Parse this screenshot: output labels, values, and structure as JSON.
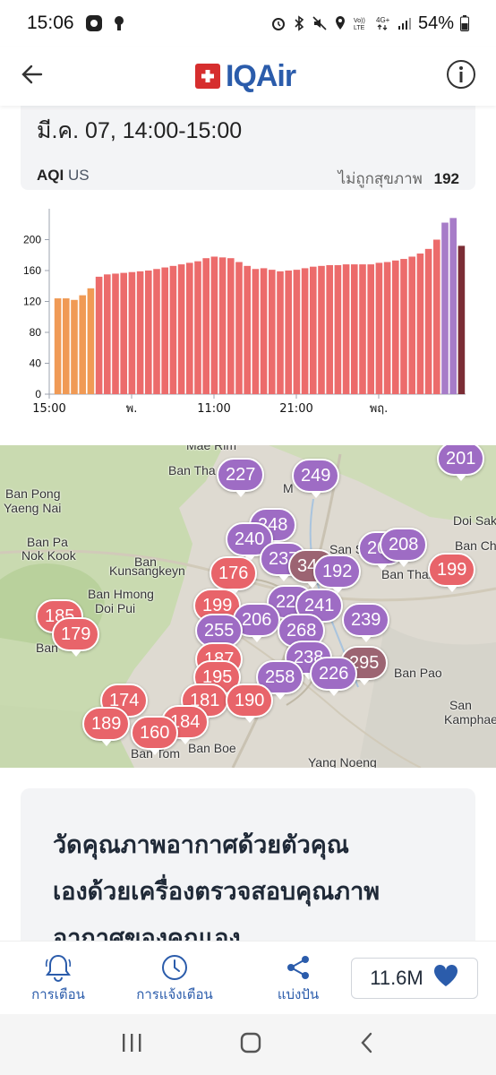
{
  "status_bar": {
    "time": "15:06",
    "battery": "54%",
    "icons": [
      "app-icon",
      "tree-icon",
      "alarm-icon",
      "bluetooth-icon",
      "mute-icon",
      "location-icon",
      "volte-icon",
      "4g-icon",
      "signal-icon",
      "battery-icon"
    ]
  },
  "header": {
    "back_icon": "arrow-left-icon",
    "logo_text": "IQAir",
    "info_icon": "info-icon"
  },
  "summary": {
    "datetime": "มี.ค. 07, 14:00-15:00",
    "aqi_label": "AQI",
    "aqi_unit": "US",
    "status": "ไม่ถูกสุขภาพ",
    "value": "192"
  },
  "chart_data": {
    "type": "bar",
    "ylim": [
      0,
      240
    ],
    "yticks": [
      0,
      40,
      80,
      120,
      160,
      200
    ],
    "xtick_labels": [
      "15:00",
      "พ.",
      "11:00",
      "21:00",
      "พฤ."
    ],
    "xtick_index": [
      0,
      10,
      20,
      30,
      40
    ],
    "values": [
      124,
      124,
      122,
      128,
      137,
      152,
      155,
      156,
      157,
      158,
      159,
      160,
      162,
      164,
      166,
      168,
      170,
      172,
      176,
      178,
      177,
      176,
      171,
      166,
      162,
      163,
      161,
      159,
      160,
      161,
      163,
      165,
      166,
      167,
      167,
      168,
      168,
      168,
      168,
      170,
      171,
      173,
      175,
      178,
      182,
      188,
      200,
      222,
      228,
      192
    ],
    "colors": {
      "orange": "#f09a55",
      "red": "#ec6b6b",
      "purple": "#a77cc8",
      "maroon": "#7b2d35"
    }
  },
  "map": {
    "place_labels": [
      "Mae Rim",
      "Ban Tha",
      "Ban Pong",
      "Yaeng Nai",
      "Ban Pa",
      "Nok Kook",
      "Ban",
      "Kunsangkeyn",
      "Ban Hmong",
      "Doi Pui",
      "Ban",
      "San S",
      "Ban Thai",
      "Doi Sak",
      "Ban Ch",
      "Ban Pao",
      "San",
      "Kamphaeng",
      "Ban Boe",
      "Ban Tom",
      "Yang Noeng",
      "M"
    ],
    "markers": [
      {
        "value": "201",
        "level": "purple"
      },
      {
        "value": "227",
        "level": "purple"
      },
      {
        "value": "249",
        "level": "purple"
      },
      {
        "value": "248",
        "level": "purple"
      },
      {
        "value": "240",
        "level": "purple"
      },
      {
        "value": "237",
        "level": "purple"
      },
      {
        "value": "202",
        "level": "purple"
      },
      {
        "value": "208",
        "level": "purple"
      },
      {
        "value": "199",
        "level": "red"
      },
      {
        "value": "176",
        "level": "red"
      },
      {
        "value": "340",
        "level": "maroon"
      },
      {
        "value": "192",
        "level": "purple"
      },
      {
        "value": "199",
        "level": "red"
      },
      {
        "value": "222",
        "level": "purple"
      },
      {
        "value": "241",
        "level": "purple"
      },
      {
        "value": "239",
        "level": "purple"
      },
      {
        "value": "206",
        "level": "purple"
      },
      {
        "value": "185",
        "level": "red"
      },
      {
        "value": "179",
        "level": "red"
      },
      {
        "value": "255",
        "level": "purple"
      },
      {
        "value": "268",
        "level": "purple"
      },
      {
        "value": "238",
        "level": "purple"
      },
      {
        "value": "295",
        "level": "maroon"
      },
      {
        "value": "187",
        "level": "red"
      },
      {
        "value": "226",
        "level": "purple"
      },
      {
        "value": "258",
        "level": "purple"
      },
      {
        "value": "195",
        "level": "red"
      },
      {
        "value": "174",
        "level": "red"
      },
      {
        "value": "181",
        "level": "red"
      },
      {
        "value": "190",
        "level": "red"
      },
      {
        "value": "189",
        "level": "red"
      },
      {
        "value": "184",
        "level": "red"
      },
      {
        "value": "160",
        "level": "red"
      }
    ]
  },
  "promo": {
    "line1": "วัดคุณภาพอากาศด้วยตัวคุณ",
    "line2": "เองด้วยเครื่องตรวจสอบคุณภาพ",
    "line3": "อากาศของคุณเอง"
  },
  "bottom_nav": {
    "items": [
      {
        "label": "การเตือน",
        "icon": "bell-icon"
      },
      {
        "label": "การแจ้งเตือน",
        "icon": "clock-icon"
      },
      {
        "label": "แบ่งปัน",
        "icon": "share-icon"
      }
    ],
    "likes": "11.6M"
  },
  "system_nav": {
    "icons": [
      "recents-icon",
      "home-icon",
      "back-icon"
    ]
  }
}
